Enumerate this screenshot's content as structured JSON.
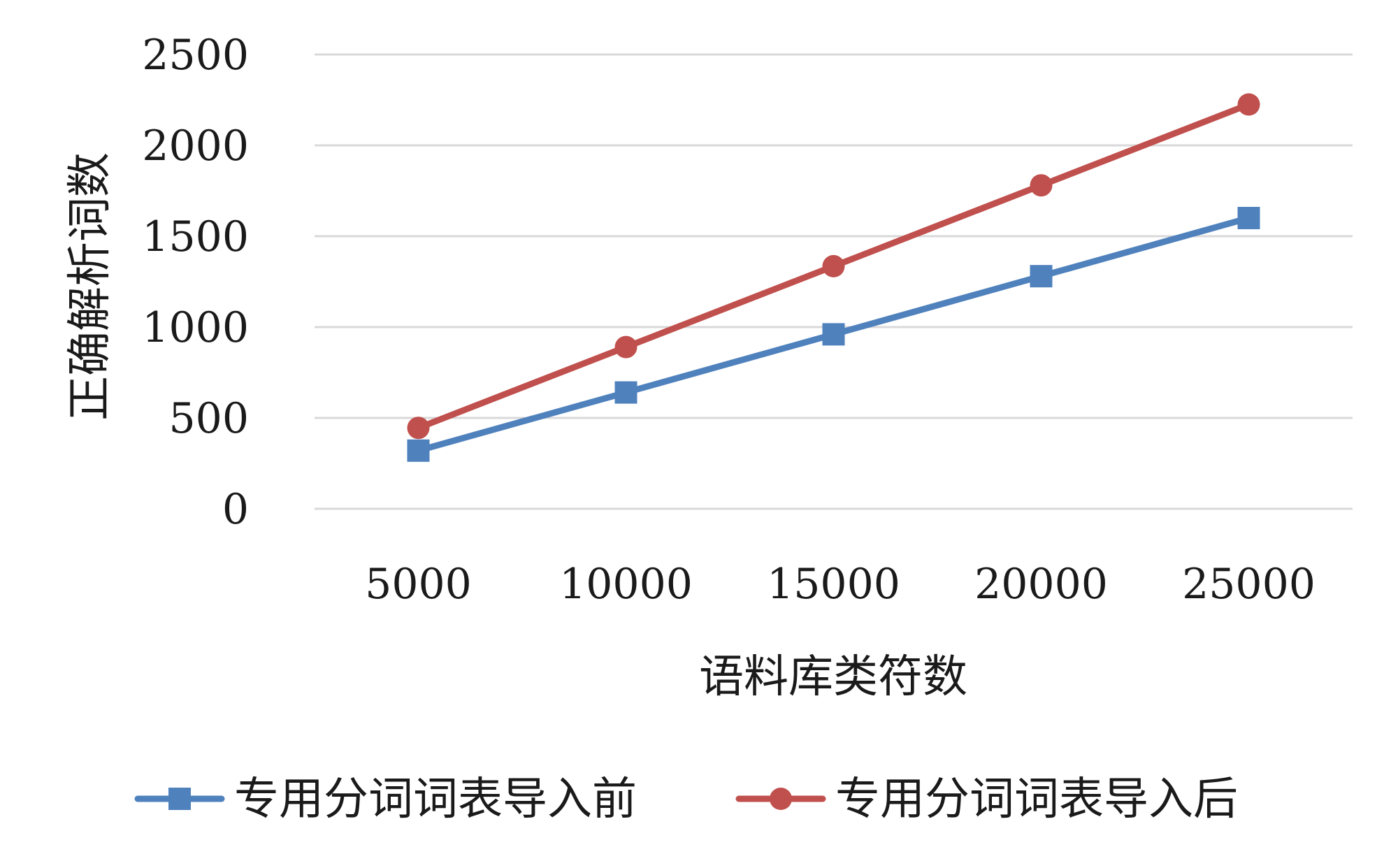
{
  "chart_data": {
    "type": "line",
    "categories": [
      "5000",
      "10000",
      "15000",
      "20000",
      "25000"
    ],
    "series": [
      {
        "name": "专用分词词表导入前",
        "values": [
          320,
          640,
          960,
          1280,
          1600
        ],
        "color": "#4f81bd",
        "marker": "square"
      },
      {
        "name": "专用分词词表导入后",
        "values": [
          445,
          890,
          1335,
          1780,
          2225
        ],
        "color": "#c0504d",
        "marker": "circle"
      }
    ],
    "xlabel": "语料库类符数",
    "ylabel": "正确解析词数",
    "ylim": [
      0,
      2500
    ],
    "yticks": [
      "0",
      "500",
      "1000",
      "1500",
      "2000",
      "2500"
    ],
    "grid": true,
    "legend_position": "bottom"
  }
}
